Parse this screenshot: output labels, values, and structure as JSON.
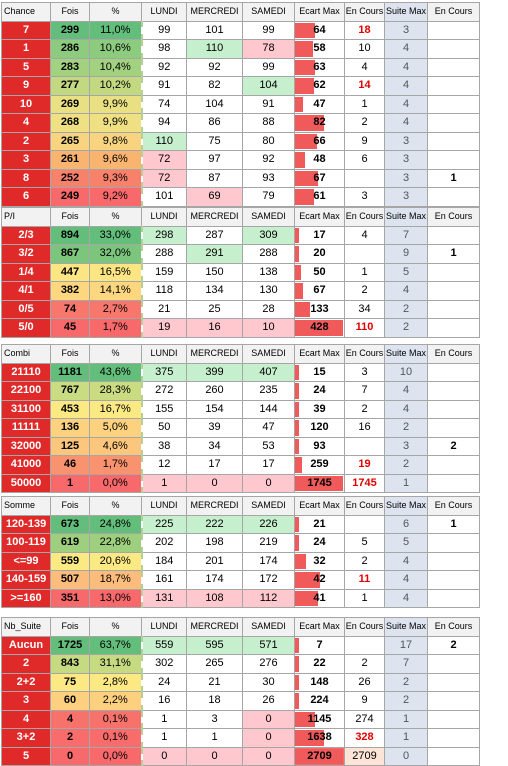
{
  "headers": {
    "fois": "Fois",
    "pct": "%",
    "lundi": "LUNDI",
    "mercredi": "MERCREDI",
    "samedi": "SAMEDI",
    "ecart_max": "Ecart Max",
    "en_cours": "En Cours",
    "suite_max": "Suite Max",
    "en_cours2": "En Cours"
  },
  "colors": {
    "green_light": "#c6efce",
    "pink_light": "#ffc7ce",
    "orange_light": "#fce4d6",
    "header_grey": "#f2f2f2",
    "label_grey": "#d9d9d9",
    "suite_blue": "#dde4f0",
    "bar_red": "#f05a5a",
    "text_red": "#e00000"
  },
  "tables": [
    {
      "title": "Chance",
      "rows": [
        {
          "key": "7",
          "fois": "299",
          "pct": "11,0%",
          "l": "99",
          "m": "101",
          "s": "99",
          "ecart": "64",
          "ecart_frac": 0.42,
          "enc": "18",
          "suite": "3",
          "enc2": "",
          "key_bg": "#e02a2a",
          "fois_bg": "#63be7b",
          "pct_bg": "#63be7b",
          "l_bg": "",
          "m_bg": "",
          "s_bg": "",
          "enc_red": true,
          "ecart_bg": ""
        },
        {
          "key": "1",
          "fois": "286",
          "pct": "10,6%",
          "l": "98",
          "m": "110",
          "s": "78",
          "ecart": "58",
          "ecart_frac": 0.38,
          "enc": "10",
          "suite": "4",
          "enc2": "",
          "key_bg": "#e02a2a",
          "fois_bg": "#8dcb7e",
          "pct_bg": "#8dcb7e",
          "l_bg": "",
          "m_bg": "#c6efce",
          "s_bg": "#ffc7ce",
          "enc_red": false,
          "ecart_bg": ""
        },
        {
          "key": "5",
          "fois": "283",
          "pct": "10,4%",
          "l": "92",
          "m": "92",
          "s": "99",
          "ecart": "63",
          "ecart_frac": 0.41,
          "enc": "4",
          "suite": "4",
          "enc2": "",
          "key_bg": "#e02a2a",
          "fois_bg": "#a2d17f",
          "pct_bg": "#a2d17f",
          "l_bg": "",
          "m_bg": "",
          "s_bg": "",
          "enc_red": false,
          "ecart_bg": ""
        },
        {
          "key": "9",
          "fois": "277",
          "pct": "10,2%",
          "l": "91",
          "m": "82",
          "s": "104",
          "ecart": "62",
          "ecart_frac": 0.4,
          "enc": "14",
          "suite": "4",
          "enc2": "",
          "key_bg": "#e02a2a",
          "fois_bg": "#c3d981",
          "pct_bg": "#c3d981",
          "l_bg": "",
          "m_bg": "",
          "s_bg": "#c6efce",
          "enc_red": true,
          "ecart_bg": ""
        },
        {
          "key": "10",
          "fois": "269",
          "pct": "9,9%",
          "l": "74",
          "m": "104",
          "s": "91",
          "ecart": "47",
          "ecart_frac": 0.16,
          "enc": "1",
          "suite": "4",
          "enc2": "",
          "key_bg": "#e02a2a",
          "fois_bg": "#e9e083",
          "pct_bg": "#e9e083",
          "l_bg": "",
          "m_bg": "",
          "s_bg": "",
          "enc_red": false,
          "ecart_bg": ""
        },
        {
          "key": "4",
          "fois": "268",
          "pct": "9,9%",
          "l": "94",
          "m": "86",
          "s": "88",
          "ecart": "82",
          "ecart_frac": 0.6,
          "enc": "2",
          "suite": "4",
          "enc2": "",
          "key_bg": "#e02a2a",
          "fois_bg": "#f0e084",
          "pct_bg": "#f0e084",
          "l_bg": "",
          "m_bg": "",
          "s_bg": "",
          "enc_red": false,
          "ecart_bg": ""
        },
        {
          "key": "2",
          "fois": "265",
          "pct": "9,8%",
          "l": "110",
          "m": "75",
          "s": "80",
          "ecart": "66",
          "ecart_frac": 0.45,
          "enc": "9",
          "suite": "3",
          "enc2": "",
          "key_bg": "#e02a2a",
          "fois_bg": "#f8d480",
          "pct_bg": "#f8d480",
          "l_bg": "#c6efce",
          "m_bg": "",
          "s_bg": "",
          "enc_red": false,
          "ecart_bg": ""
        },
        {
          "key": "3",
          "fois": "261",
          "pct": "9,6%",
          "l": "72",
          "m": "97",
          "s": "92",
          "ecart": "48",
          "ecart_frac": 0.2,
          "enc": "6",
          "suite": "3",
          "enc2": "",
          "key_bg": "#e02a2a",
          "fois_bg": "#f9b46f",
          "pct_bg": "#f9b46f",
          "l_bg": "#ffc7ce",
          "m_bg": "",
          "s_bg": "",
          "enc_red": false,
          "ecart_bg": ""
        },
        {
          "key": "8",
          "fois": "252",
          "pct": "9,3%",
          "l": "72",
          "m": "87",
          "s": "93",
          "ecart": "67",
          "ecart_frac": 0.48,
          "enc": "",
          "suite": "3",
          "enc2": "1",
          "key_bg": "#e02a2a",
          "fois_bg": "#f8816b",
          "pct_bg": "#f8816b",
          "l_bg": "#ffc7ce",
          "m_bg": "",
          "s_bg": "",
          "enc_red": false,
          "ecart_bg": ""
        },
        {
          "key": "6",
          "fois": "249",
          "pct": "9,2%",
          "l": "101",
          "m": "69",
          "s": "79",
          "ecart": "61",
          "ecart_frac": 0.4,
          "enc": "3",
          "suite": "3",
          "enc2": "",
          "key_bg": "#e02a2a",
          "fois_bg": "#f8696b",
          "pct_bg": "#f8696b",
          "l_bg": "",
          "m_bg": "#ffc7ce",
          "s_bg": "",
          "enc_red": false,
          "ecart_bg": ""
        }
      ]
    },
    {
      "title": "P/I",
      "rows": [
        {
          "key": "2/3",
          "fois": "894",
          "pct": "33,0%",
          "l": "298",
          "m": "287",
          "s": "309",
          "ecart": "17",
          "ecart_frac": 0.04,
          "enc": "4",
          "suite": "7",
          "enc2": "",
          "key_bg": "#e02a2a",
          "fois_bg": "#63be7b",
          "pct_bg": "#63be7b",
          "l_bg": "#c6efce",
          "m_bg": "",
          "s_bg": "#c6efce",
          "enc_red": false,
          "ecart_bg": ""
        },
        {
          "key": "3/2",
          "fois": "867",
          "pct": "32,0%",
          "l": "288",
          "m": "291",
          "s": "288",
          "ecart": "20",
          "ecart_frac": 0.05,
          "enc": "",
          "suite": "9",
          "enc2": "1",
          "key_bg": "#e02a2a",
          "fois_bg": "#7cc57c",
          "pct_bg": "#7cc57c",
          "l_bg": "",
          "m_bg": "#c6efce",
          "s_bg": "",
          "enc_red": false,
          "ecart_bg": ""
        },
        {
          "key": "1/4",
          "fois": "447",
          "pct": "16,5%",
          "l": "159",
          "m": "150",
          "s": "138",
          "ecart": "50",
          "ecart_frac": 0.12,
          "enc": "1",
          "suite": "5",
          "enc2": "",
          "key_bg": "#e02a2a",
          "fois_bg": "#fce583",
          "pct_bg": "#fce583",
          "l_bg": "",
          "m_bg": "",
          "s_bg": "",
          "enc_red": false,
          "ecart_bg": ""
        },
        {
          "key": "4/1",
          "fois": "382",
          "pct": "14,1%",
          "l": "118",
          "m": "134",
          "s": "130",
          "ecart": "67",
          "ecart_frac": 0.16,
          "enc": "2",
          "suite": "4",
          "enc2": "",
          "key_bg": "#e02a2a",
          "fois_bg": "#fcd77f",
          "pct_bg": "#fcd77f",
          "l_bg": "",
          "m_bg": "",
          "s_bg": "",
          "enc_red": false,
          "ecart_bg": ""
        },
        {
          "key": "0/5",
          "fois": "74",
          "pct": "2,7%",
          "l": "21",
          "m": "25",
          "s": "28",
          "ecart": "133",
          "ecart_frac": 0.32,
          "enc": "34",
          "suite": "2",
          "enc2": "",
          "key_bg": "#e02a2a",
          "fois_bg": "#f8776d",
          "pct_bg": "#f8776d",
          "l_bg": "",
          "m_bg": "",
          "s_bg": "",
          "enc_red": false,
          "ecart_bg": ""
        },
        {
          "key": "5/0",
          "fois": "45",
          "pct": "1,7%",
          "l": "19",
          "m": "16",
          "s": "10",
          "ecart": "428",
          "ecart_frac": 1.0,
          "enc": "110",
          "suite": "2",
          "enc2": "",
          "key_bg": "#e02a2a",
          "fois_bg": "#f8696b",
          "pct_bg": "#f8696b",
          "l_bg": "#ffc7ce",
          "m_bg": "#ffc7ce",
          "s_bg": "#ffc7ce",
          "enc_red": true,
          "ecart_bg": ""
        }
      ]
    },
    {
      "title": "Combi",
      "rows": [
        {
          "key": "21110",
          "fois": "1181",
          "pct": "43,6%",
          "l": "375",
          "m": "399",
          "s": "407",
          "ecart": "15",
          "ecart_frac": 0.0,
          "enc": "3",
          "suite": "10",
          "enc2": "",
          "key_bg": "#e02a2a",
          "fois_bg": "#63be7b",
          "pct_bg": "#63be7b",
          "l_bg": "#c6efce",
          "m_bg": "#c6efce",
          "s_bg": "#c6efce",
          "enc_red": false,
          "ecart_bg": ""
        },
        {
          "key": "22100",
          "fois": "767",
          "pct": "28,3%",
          "l": "272",
          "m": "260",
          "s": "235",
          "ecart": "24",
          "ecart_frac": 0.01,
          "enc": "7",
          "suite": "4",
          "enc2": "",
          "key_bg": "#e02a2a",
          "fois_bg": "#c9dc81",
          "pct_bg": "#c9dc81",
          "l_bg": "",
          "m_bg": "",
          "s_bg": "",
          "enc_red": false,
          "ecart_bg": ""
        },
        {
          "key": "31100",
          "fois": "453",
          "pct": "16,7%",
          "l": "155",
          "m": "154",
          "s": "144",
          "ecart": "39",
          "ecart_frac": 0.02,
          "enc": "2",
          "suite": "4",
          "enc2": "",
          "key_bg": "#e02a2a",
          "fois_bg": "#fbe983",
          "pct_bg": "#fbe983",
          "l_bg": "",
          "m_bg": "",
          "s_bg": "",
          "enc_red": false,
          "ecart_bg": ""
        },
        {
          "key": "11111",
          "fois": "136",
          "pct": "5,0%",
          "l": "50",
          "m": "39",
          "s": "47",
          "ecart": "120",
          "ecart_frac": 0.06,
          "enc": "16",
          "suite": "2",
          "enc2": "",
          "key_bg": "#e02a2a",
          "fois_bg": "#fcd27f",
          "pct_bg": "#fcd27f",
          "l_bg": "",
          "m_bg": "",
          "s_bg": "",
          "enc_red": false,
          "ecart_bg": ""
        },
        {
          "key": "32000",
          "fois": "125",
          "pct": "4,6%",
          "l": "38",
          "m": "34",
          "s": "53",
          "ecart": "93",
          "ecart_frac": 0.05,
          "enc": "",
          "suite": "3",
          "enc2": "2",
          "key_bg": "#e02a2a",
          "fois_bg": "#fcc77c",
          "pct_bg": "#fcc77c",
          "l_bg": "",
          "m_bg": "",
          "s_bg": "",
          "enc_red": false,
          "ecart_bg": ""
        },
        {
          "key": "41000",
          "fois": "46",
          "pct": "1,7%",
          "l": "12",
          "m": "17",
          "s": "17",
          "ecart": "259",
          "ecart_frac": 0.15,
          "enc": "19",
          "suite": "2",
          "enc2": "",
          "key_bg": "#e02a2a",
          "fois_bg": "#f9936f",
          "pct_bg": "#f9936f",
          "l_bg": "",
          "m_bg": "",
          "s_bg": "",
          "enc_red": true,
          "ecart_bg": ""
        },
        {
          "key": "50000",
          "fois": "1",
          "pct": "0,0%",
          "l": "1",
          "m": "0",
          "s": "0",
          "ecart": "1745",
          "ecart_frac": 1.0,
          "enc": "1745",
          "suite": "1",
          "enc2": "",
          "key_bg": "#e02a2a",
          "fois_bg": "#f8696b",
          "pct_bg": "#f8696b",
          "l_bg": "#ffc7ce",
          "m_bg": "#ffc7ce",
          "s_bg": "#ffc7ce",
          "enc_red": true,
          "ecart_bg": ""
        }
      ]
    },
    {
      "title": "Somme",
      "rows": [
        {
          "key": "120-139",
          "fois": "673",
          "pct": "24,8%",
          "l": "225",
          "m": "222",
          "s": "226",
          "ecart": "21",
          "ecart_frac": 0.0,
          "enc": "",
          "suite": "6",
          "enc2": "1",
          "key_bg": "#e02a2a",
          "fois_bg": "#63be7b",
          "pct_bg": "#63be7b",
          "l_bg": "#c6efce",
          "m_bg": "#c6efce",
          "s_bg": "#c6efce",
          "enc_red": false,
          "ecart_bg": ""
        },
        {
          "key": "100-119",
          "fois": "619",
          "pct": "22,8%",
          "l": "202",
          "m": "198",
          "s": "219",
          "ecart": "24",
          "ecart_frac": 0.06,
          "enc": "5",
          "suite": "5",
          "enc2": "",
          "key_bg": "#e02a2a",
          "fois_bg": "#9ecf7f",
          "pct_bg": "#9ecf7f",
          "l_bg": "",
          "m_bg": "",
          "s_bg": "",
          "enc_red": false,
          "ecart_bg": ""
        },
        {
          "key": "<=99",
          "fois": "559",
          "pct": "20,6%",
          "l": "184",
          "m": "201",
          "s": "174",
          "ecart": "32",
          "ecart_frac": 0.23,
          "enc": "2",
          "suite": "4",
          "enc2": "",
          "key_bg": "#e02a2a",
          "fois_bg": "#fbe983",
          "pct_bg": "#fbe983",
          "l_bg": "",
          "m_bg": "",
          "s_bg": "",
          "enc_red": false,
          "ecart_bg": ""
        },
        {
          "key": "140-159",
          "fois": "507",
          "pct": "18,7%",
          "l": "161",
          "m": "174",
          "s": "172",
          "ecart": "42",
          "ecart_frac": 0.52,
          "enc": "11",
          "suite": "4",
          "enc2": "",
          "key_bg": "#e02a2a",
          "fois_bg": "#fcbc7b",
          "pct_bg": "#fcbc7b",
          "l_bg": "",
          "m_bg": "",
          "s_bg": "",
          "enc_red": true,
          "ecart_bg": ""
        },
        {
          "key": ">=160",
          "fois": "351",
          "pct": "13,0%",
          "l": "131",
          "m": "108",
          "s": "112",
          "ecart": "41",
          "ecart_frac": 0.48,
          "enc": "1",
          "suite": "4",
          "enc2": "",
          "key_bg": "#e02a2a",
          "fois_bg": "#f8696b",
          "pct_bg": "#f8696b",
          "l_bg": "#ffc7ce",
          "m_bg": "#ffc7ce",
          "s_bg": "#ffc7ce",
          "enc_red": false,
          "ecart_bg": ""
        }
      ]
    },
    {
      "title": "Nb_Suite",
      "rows": [
        {
          "key": "Aucun",
          "fois": "1725",
          "pct": "63,7%",
          "l": "559",
          "m": "595",
          "s": "571",
          "ecart": "7",
          "ecart_frac": 0.0,
          "enc": "",
          "suite": "17",
          "enc2": "2",
          "key_bg": "#e02a2a",
          "fois_bg": "#63be7b",
          "pct_bg": "#63be7b",
          "l_bg": "#c6efce",
          "m_bg": "#c6efce",
          "s_bg": "#c6efce",
          "enc_red": false,
          "ecart_bg": ""
        },
        {
          "key": "2",
          "fois": "843",
          "pct": "31,1%",
          "l": "302",
          "m": "265",
          "s": "276",
          "ecart": "22",
          "ecart_frac": 0.0,
          "enc": "2",
          "suite": "7",
          "enc2": "",
          "key_bg": "#e02a2a",
          "fois_bg": "#c6db81",
          "pct_bg": "#c6db81",
          "l_bg": "",
          "m_bg": "",
          "s_bg": "",
          "enc_red": false,
          "ecart_bg": ""
        },
        {
          "key": "2+2",
          "fois": "75",
          "pct": "2,8%",
          "l": "24",
          "m": "21",
          "s": "30",
          "ecart": "148",
          "ecart_frac": 0.05,
          "enc": "26",
          "suite": "2",
          "enc2": "",
          "key_bg": "#e02a2a",
          "fois_bg": "#fce983",
          "pct_bg": "#fce983",
          "l_bg": "",
          "m_bg": "",
          "s_bg": "",
          "enc_red": false,
          "ecart_bg": ""
        },
        {
          "key": "3",
          "fois": "60",
          "pct": "2,2%",
          "l": "16",
          "m": "18",
          "s": "26",
          "ecart": "224",
          "ecart_frac": 0.08,
          "enc": "9",
          "suite": "2",
          "enc2": "",
          "key_bg": "#e02a2a",
          "fois_bg": "#fcd07f",
          "pct_bg": "#fcd07f",
          "l_bg": "",
          "m_bg": "",
          "s_bg": "",
          "enc_red": false,
          "ecart_bg": ""
        },
        {
          "key": "4",
          "fois": "4",
          "pct": "0,1%",
          "l": "1",
          "m": "3",
          "s": "0",
          "ecart": "1145",
          "ecart_frac": 0.42,
          "enc": "274",
          "suite": "1",
          "enc2": "",
          "key_bg": "#e02a2a",
          "fois_bg": "#f8726c",
          "pct_bg": "#f8726c",
          "l_bg": "",
          "m_bg": "",
          "s_bg": "#ffc7ce",
          "enc_red": false,
          "ecart_bg": ""
        },
        {
          "key": "3+2",
          "fois": "2",
          "pct": "0,1%",
          "l": "1",
          "m": "1",
          "s": "0",
          "ecart": "1638",
          "ecart_frac": 0.6,
          "enc": "328",
          "suite": "1",
          "enc2": "",
          "key_bg": "#e02a2a",
          "fois_bg": "#f86c6b",
          "pct_bg": "#f86c6b",
          "l_bg": "",
          "m_bg": "",
          "s_bg": "#ffc7ce",
          "enc_red": true,
          "ecart_bg": ""
        },
        {
          "key": "5",
          "fois": "0",
          "pct": "0,0%",
          "l": "0",
          "m": "0",
          "s": "0",
          "ecart": "2709",
          "ecart_frac": 1.0,
          "enc": "2709",
          "suite": "0",
          "enc2": "",
          "key_bg": "#e02a2a",
          "fois_bg": "#f8696b",
          "pct_bg": "#f8696b",
          "l_bg": "#ffc7ce",
          "m_bg": "#ffc7ce",
          "s_bg": "#ffc7ce",
          "enc_red": false,
          "ecart_bg": "#f8696b",
          "enc_bg": "#fce4d6"
        }
      ]
    }
  ]
}
